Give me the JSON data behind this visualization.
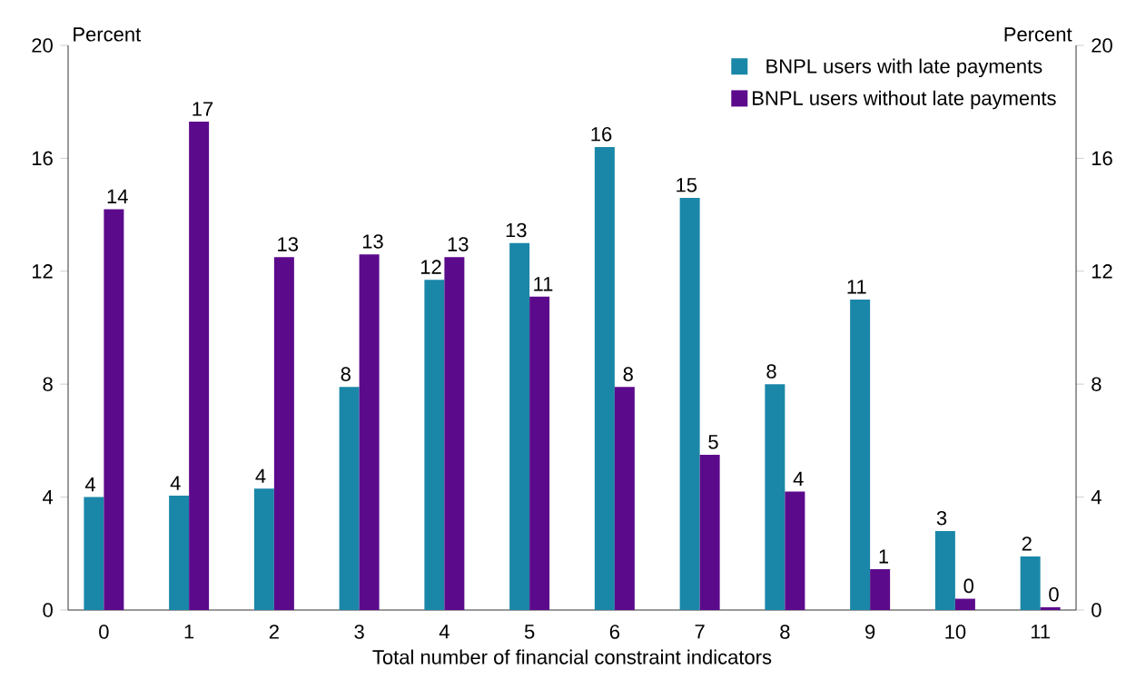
{
  "chart_data": {
    "type": "bar",
    "xlabel": "Total number of financial constraint indicators",
    "ylabel": "Percent",
    "y2label": "Percent",
    "categories": [
      "0",
      "1",
      "2",
      "3",
      "4",
      "5",
      "6",
      "7",
      "8",
      "9",
      "10",
      "11"
    ],
    "series": [
      {
        "name": "BNPL users with late payments",
        "color": "#1a87a8",
        "values": [
          4.0,
          4.05,
          4.3,
          7.9,
          11.7,
          13.0,
          16.4,
          14.6,
          8.0,
          11.0,
          2.8,
          1.9
        ],
        "value_labels": [
          "4",
          "4",
          "4",
          "8",
          "12",
          "13",
          "16",
          "15",
          "8",
          "11",
          "3",
          "2"
        ]
      },
      {
        "name": "BNPL users without late payments",
        "color": "#5c0a8c",
        "values": [
          14.2,
          17.3,
          12.5,
          12.6,
          12.5,
          11.1,
          7.9,
          5.5,
          4.2,
          1.45,
          0.4,
          0.1
        ],
        "value_labels": [
          "14",
          "17",
          "13",
          "13",
          "13",
          "11",
          "8",
          "5",
          "4",
          "1",
          "0",
          "0"
        ]
      }
    ],
    "ylim": [
      0,
      20
    ],
    "yticks": [
      0,
      4,
      8,
      12,
      16,
      20
    ],
    "y2lim": [
      0,
      20
    ],
    "y2ticks": [
      0,
      4,
      8,
      12,
      16,
      20
    ],
    "legend": "top right",
    "grid": false
  }
}
